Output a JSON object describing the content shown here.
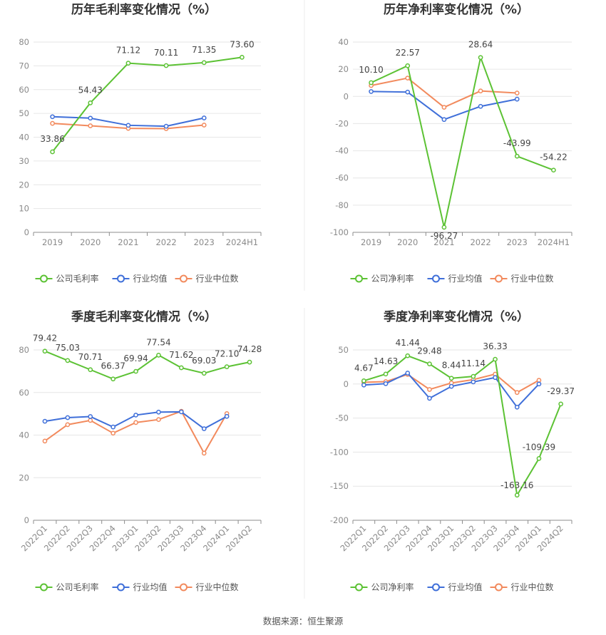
{
  "colors": {
    "company": "#5cc234",
    "industry_avg": "#3f6fd9",
    "industry_median": "#f28a5d",
    "grid": "#e6e6e6",
    "axis": "#8c8c8c"
  },
  "source": "数据来源：恒生聚源",
  "chart_data": [
    {
      "type": "line",
      "title": "历年毛利率变化情况（%）",
      "categories": [
        "2019",
        "2020",
        "2021",
        "2022",
        "2023",
        "2024H1"
      ],
      "ylim": [
        0,
        80
      ],
      "yticks": [
        0,
        10,
        20,
        30,
        40,
        50,
        60,
        70,
        80
      ],
      "grid": true,
      "legend_position": "bottom",
      "series": [
        {
          "name": "公司毛利率",
          "role": "company",
          "values": [
            33.86,
            54.43,
            71.12,
            70.11,
            71.35,
            73.6
          ],
          "labels": [
            "33.86",
            "54.43",
            "71.12",
            "70.11",
            "71.35",
            "73.60"
          ]
        },
        {
          "name": "行业均值",
          "role": "industry_avg",
          "values": [
            48.6,
            48.0,
            45.0,
            44.6,
            48.1,
            null
          ]
        },
        {
          "name": "行业中位数",
          "role": "industry_median",
          "values": [
            45.8,
            44.8,
            43.7,
            43.6,
            45.1,
            null
          ]
        }
      ]
    },
    {
      "type": "line",
      "title": "历年净利率变化情况（%）",
      "categories": [
        "2019",
        "2020",
        "2021",
        "2022",
        "2023",
        "2024H1"
      ],
      "ylim": [
        -100,
        40
      ],
      "yticks": [
        -100,
        -80,
        -60,
        -40,
        -20,
        0,
        20,
        40
      ],
      "grid": true,
      "legend_position": "bottom",
      "series": [
        {
          "name": "公司净利率",
          "role": "company",
          "values": [
            10.1,
            22.57,
            -96.27,
            28.64,
            -43.99,
            -54.22
          ],
          "labels": [
            "10.10",
            "22.57",
            "-96.27",
            "28.64",
            "-43.99",
            "-54.22"
          ]
        },
        {
          "name": "行业均值",
          "role": "industry_avg",
          "values": [
            3.6,
            3.2,
            -17.0,
            -7.3,
            -2.0,
            null
          ]
        },
        {
          "name": "行业中位数",
          "role": "industry_median",
          "values": [
            8.0,
            13.5,
            -8.0,
            4.0,
            2.5,
            null
          ]
        }
      ]
    },
    {
      "type": "line",
      "title": "季度毛利率变化情况（%）",
      "categories": [
        "2022Q1",
        "2022Q2",
        "2022Q3",
        "2022Q4",
        "2023Q1",
        "2023Q2",
        "2023Q3",
        "2023Q4",
        "2024Q1",
        "2024Q2"
      ],
      "ylim": [
        0,
        80
      ],
      "yticks": [
        0,
        20,
        40,
        60,
        80
      ],
      "grid": true,
      "legend_position": "bottom",
      "series": [
        {
          "name": "公司毛利率",
          "role": "company",
          "values": [
            79.42,
            75.03,
            70.71,
            66.37,
            69.94,
            77.54,
            71.62,
            69.03,
            72.1,
            74.28
          ],
          "labels": [
            "79.42",
            "75.03",
            "70.71",
            "66.37",
            "69.94",
            "77.54",
            "71.62",
            "69.03",
            "72.10",
            "74.28"
          ]
        },
        {
          "name": "行业均值",
          "role": "industry_avg",
          "values": [
            46.5,
            48.2,
            48.7,
            43.8,
            49.4,
            50.8,
            50.9,
            43.0,
            48.8,
            null
          ]
        },
        {
          "name": "行业中位数",
          "role": "industry_median",
          "values": [
            37.2,
            44.9,
            46.9,
            40.9,
            45.9,
            47.3,
            51.2,
            31.5,
            50.1,
            null
          ]
        }
      ]
    },
    {
      "type": "line",
      "title": "季度净利率变化情况（%）",
      "categories": [
        "2022Q1",
        "2022Q2",
        "2022Q3",
        "2022Q4",
        "2023Q1",
        "2023Q2",
        "2023Q3",
        "2023Q4",
        "2024Q1",
        "2024Q2"
      ],
      "ylim": [
        -200,
        50
      ],
      "yticks": [
        -200,
        -150,
        -100,
        -50,
        0,
        50
      ],
      "grid": true,
      "legend_position": "bottom",
      "series": [
        {
          "name": "公司净利率",
          "role": "company",
          "values": [
            4.67,
            14.63,
            41.44,
            29.48,
            8.44,
            11.14,
            36.33,
            -163.16,
            -109.39,
            -29.37
          ],
          "labels": [
            "4.67",
            "14.63",
            "41.44",
            "29.48",
            "8.44",
            "11.14",
            "36.33",
            "-163.16",
            "-109.39",
            "-29.37"
          ]
        },
        {
          "name": "行业均值",
          "role": "industry_avg",
          "values": [
            -1.5,
            0.5,
            16.0,
            -21.0,
            -3.5,
            3.0,
            9.5,
            -34.0,
            0.0,
            null
          ]
        },
        {
          "name": "行业中位数",
          "role": "industry_median",
          "values": [
            2.5,
            3.5,
            14.0,
            -8.0,
            1.5,
            6.5,
            14.5,
            -12.5,
            5.5,
            null
          ]
        }
      ]
    }
  ]
}
